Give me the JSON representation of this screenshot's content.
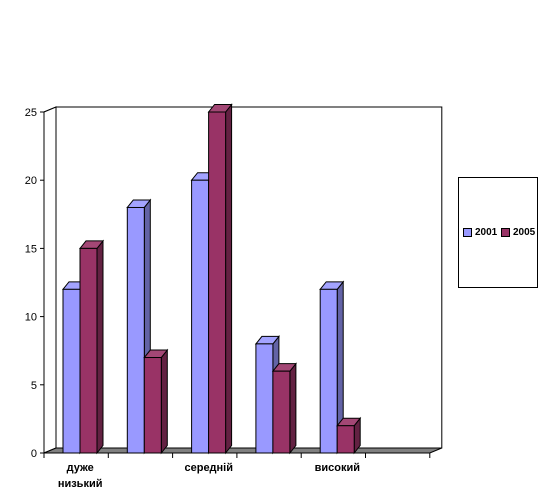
{
  "chart_data": {
    "type": "bar",
    "categories": [
      [
        "дуже",
        "низький"
      ],
      [],
      [
        "середній"
      ],
      [],
      [
        "високий"
      ],
      []
    ],
    "series": [
      {
        "name": "2001",
        "values": [
          12,
          18,
          20,
          8,
          12,
          null
        ],
        "color": "#9999FF"
      },
      {
        "name": "2005",
        "values": [
          15,
          7,
          25,
          6,
          2,
          null
        ],
        "color": "#993366"
      }
    ],
    "ylim": [
      0,
      25
    ],
    "yticks": [
      0,
      5,
      10,
      15,
      20,
      25
    ],
    "grid": true,
    "legend_position": "right",
    "title": "",
    "xlabel": "",
    "ylabel": ""
  }
}
